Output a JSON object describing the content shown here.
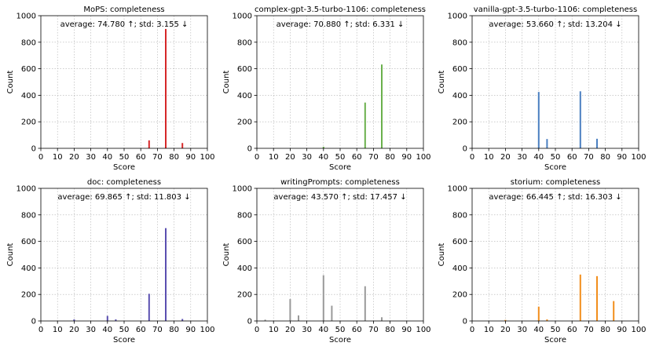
{
  "chart_data": [
    {
      "type": "bar",
      "title": "MoPS: completeness",
      "annotation": "average: 74.780 ↑; std: 3.155 ↓",
      "xlabel": "Score",
      "ylabel": "Count",
      "xlim": [
        0,
        100
      ],
      "ylim": [
        0,
        1000
      ],
      "xticks": [
        0,
        10,
        20,
        30,
        40,
        50,
        60,
        70,
        80,
        90,
        100
      ],
      "yticks": [
        0,
        200,
        400,
        600,
        800,
        1000
      ],
      "grid": true,
      "color": "#d62728",
      "x": [
        65,
        75,
        85
      ],
      "values": [
        60,
        900,
        40
      ]
    },
    {
      "type": "bar",
      "title": "complex-gpt-3.5-turbo-1106: completeness",
      "annotation": "average: 70.880 ↑; std: 6.331 ↓",
      "xlabel": "Score",
      "ylabel": "Count",
      "xlim": [
        0,
        100
      ],
      "ylim": [
        0,
        1000
      ],
      "xticks": [
        0,
        10,
        20,
        30,
        40,
        50,
        60,
        70,
        80,
        90,
        100
      ],
      "yticks": [
        0,
        200,
        400,
        600,
        800,
        1000
      ],
      "grid": true,
      "color": "#6ab04c",
      "x": [
        40,
        65,
        75
      ],
      "values": [
        12,
        345,
        632
      ]
    },
    {
      "type": "bar",
      "title": "vanilla-gpt-3.5-turbo-1106: completeness",
      "annotation": "average: 53.660 ↑; std: 13.204 ↓",
      "xlabel": "Score",
      "ylabel": "Count",
      "xlim": [
        0,
        100
      ],
      "ylim": [
        0,
        1000
      ],
      "xticks": [
        0,
        10,
        20,
        30,
        40,
        50,
        60,
        70,
        80,
        90,
        100
      ],
      "yticks": [
        0,
        200,
        400,
        600,
        800,
        1000
      ],
      "grid": true,
      "color": "#4a7fc1",
      "x": [
        40,
        45,
        65,
        75
      ],
      "values": [
        425,
        70,
        430,
        72
      ]
    },
    {
      "type": "bar",
      "title": "doc: completeness",
      "annotation": "average: 69.865 ↑; std: 11.803 ↓",
      "xlabel": "Score",
      "ylabel": "Count",
      "xlim": [
        0,
        100
      ],
      "ylim": [
        0,
        1000
      ],
      "xticks": [
        0,
        10,
        20,
        30,
        40,
        50,
        60,
        70,
        80,
        90,
        100
      ],
      "yticks": [
        0,
        200,
        400,
        600,
        800,
        1000
      ],
      "grid": true,
      "color": "#5a4fb0",
      "x": [
        20,
        40,
        45,
        65,
        75,
        85
      ],
      "values": [
        12,
        38,
        12,
        205,
        700,
        15
      ]
    },
    {
      "type": "bar",
      "title": "writingPrompts: completeness",
      "annotation": "average: 43.570 ↑; std: 17.457 ↓",
      "xlabel": "Score",
      "ylabel": "Count",
      "xlim": [
        0,
        100
      ],
      "ylim": [
        0,
        1000
      ],
      "xticks": [
        0,
        10,
        20,
        30,
        40,
        50,
        60,
        70,
        80,
        90,
        100
      ],
      "yticks": [
        0,
        200,
        400,
        600,
        800,
        1000
      ],
      "grid": true,
      "color": "#9a9a9a",
      "x": [
        5,
        20,
        25,
        40,
        45,
        65,
        75
      ],
      "values": [
        10,
        165,
        42,
        345,
        115,
        262,
        28
      ]
    },
    {
      "type": "bar",
      "title": "storium: completeness",
      "annotation": "average: 66.445 ↑; std: 16.303 ↓",
      "xlabel": "Score",
      "ylabel": "Count",
      "xlim": [
        0,
        100
      ],
      "ylim": [
        0,
        1000
      ],
      "xticks": [
        0,
        10,
        20,
        30,
        40,
        50,
        60,
        70,
        80,
        90,
        100
      ],
      "yticks": [
        0,
        200,
        400,
        600,
        800,
        1000
      ],
      "grid": true,
      "color": "#f28e1c",
      "x": [
        20,
        40,
        45,
        65,
        75,
        85
      ],
      "values": [
        8,
        108,
        12,
        350,
        338,
        150
      ]
    }
  ]
}
